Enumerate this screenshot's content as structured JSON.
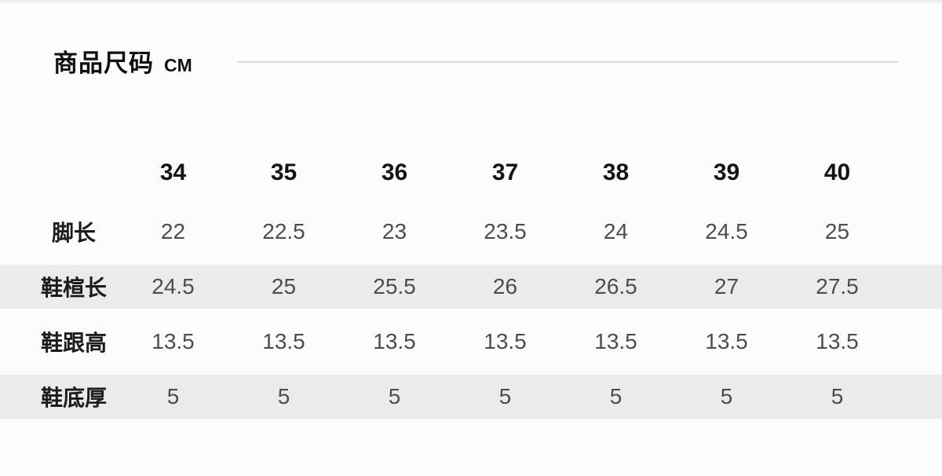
{
  "header": {
    "title": "商品尺码",
    "unit": "CM"
  },
  "colors": {
    "page_background": "#fcfcfc",
    "top_strip": "#f1f0ee",
    "divider": "#dcdcdc",
    "stripe": "#ebebeb",
    "label_text": "#1c1c1c",
    "value_text": "#4d4d4d",
    "header_text": "#141414"
  },
  "chart_data": {
    "type": "table",
    "title": "商品尺码",
    "unit": "CM",
    "columns": [
      "34",
      "35",
      "36",
      "37",
      "38",
      "39",
      "40"
    ],
    "rows": [
      {
        "label": "脚长",
        "values": [
          "22",
          "22.5",
          "23",
          "23.5",
          "24",
          "24.5",
          "25"
        ]
      },
      {
        "label": "鞋楦长",
        "values": [
          "24.5",
          "25",
          "25.5",
          "26",
          "26.5",
          "27",
          "27.5"
        ]
      },
      {
        "label": "鞋跟高",
        "values": [
          "13.5",
          "13.5",
          "13.5",
          "13.5",
          "13.5",
          "13.5",
          "13.5"
        ]
      },
      {
        "label": "鞋底厚",
        "values": [
          "5",
          "5",
          "5",
          "5",
          "5",
          "5",
          "5"
        ]
      }
    ],
    "layout": {
      "striped_rows": [
        1,
        3
      ],
      "grid": false,
      "stripe_full_width": true
    }
  }
}
